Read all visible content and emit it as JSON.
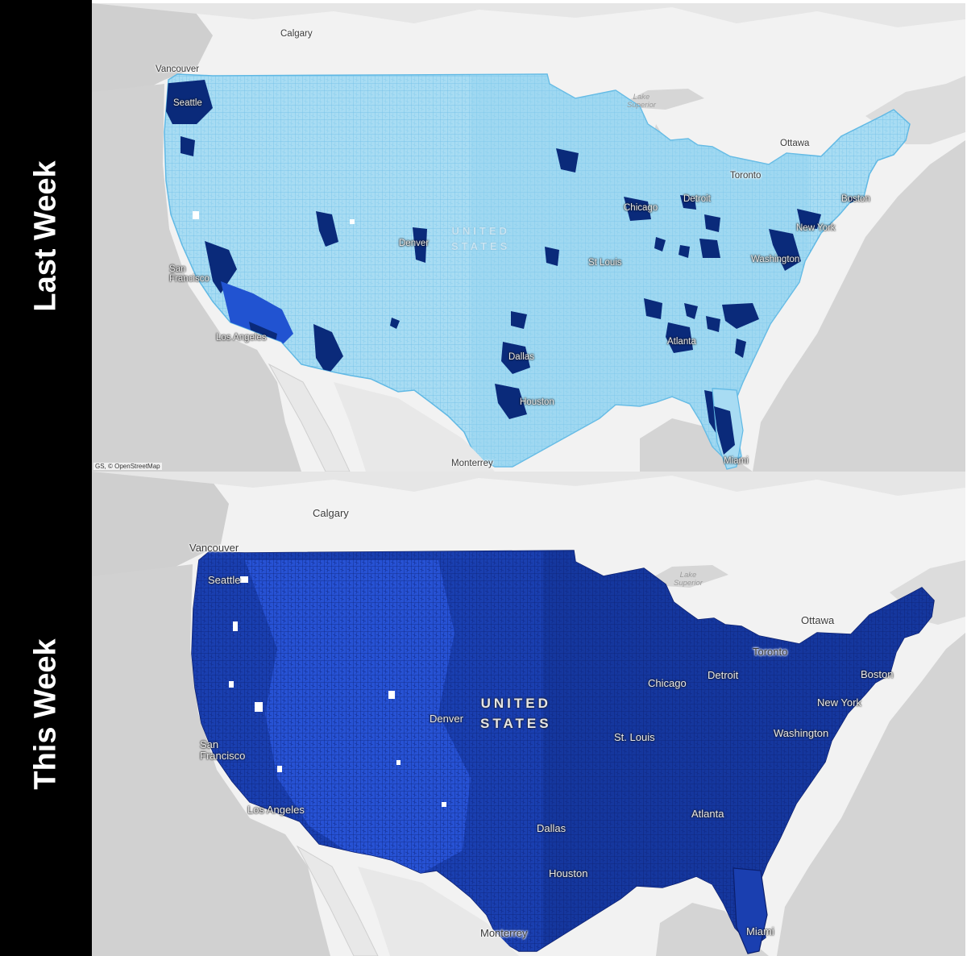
{
  "panels": [
    {
      "label": "Last Week",
      "country_line1": "UNITED",
      "country_line2": "STATES",
      "attribution": "GS, © OpenStreetMap",
      "fill_color": "#a8dcf3",
      "line_color": "#5fb8e4",
      "hotspot_color": "#0a2a7a",
      "cities": {
        "calgary": "Calgary",
        "vancouver": "Vancouver",
        "seattle": "Seattle",
        "lake_1": "Lake",
        "lake_2": "Superior",
        "ottawa": "Ottawa",
        "toronto": "Toronto",
        "detroit": "Detroit",
        "boston": "Boston",
        "chicago": "Chicago",
        "new_york": "New York",
        "denver": "Denver",
        "st_louis": "St Louis",
        "washington": "Washington",
        "sf_1": "San",
        "sf_2": "Francisco",
        "los_angeles": "Los Angeles",
        "atlanta": "Atlanta",
        "dallas": "Dallas",
        "houston": "Houston",
        "miami": "Miami",
        "monterrey": "Monterrey"
      }
    },
    {
      "label": "This Week",
      "country_line1": "UNITED",
      "country_line2": "STATES",
      "fill_color": "#1a3fb0",
      "west_color": "#2752d4",
      "line_color": "#0b1f6e",
      "cities": {
        "calgary": "Calgary",
        "vancouver": "Vancouver",
        "seattle": "Seattle",
        "lake_1": "Lake",
        "lake_2": "Superior",
        "ottawa": "Ottawa",
        "toronto": "Toronto",
        "detroit": "Detroit",
        "chicago": "Chicago",
        "boston": "Boston",
        "new_york": "New York",
        "denver": "Denver",
        "st_louis": "St. Louis",
        "washington": "Washington",
        "sf_1": "San",
        "sf_2": "Francisco",
        "los_angeles": "Los Angeles",
        "atlanta": "Atlanta",
        "dallas": "Dallas",
        "houston": "Houston",
        "miami": "Miami",
        "monterrey": "Monterrey"
      }
    }
  ]
}
